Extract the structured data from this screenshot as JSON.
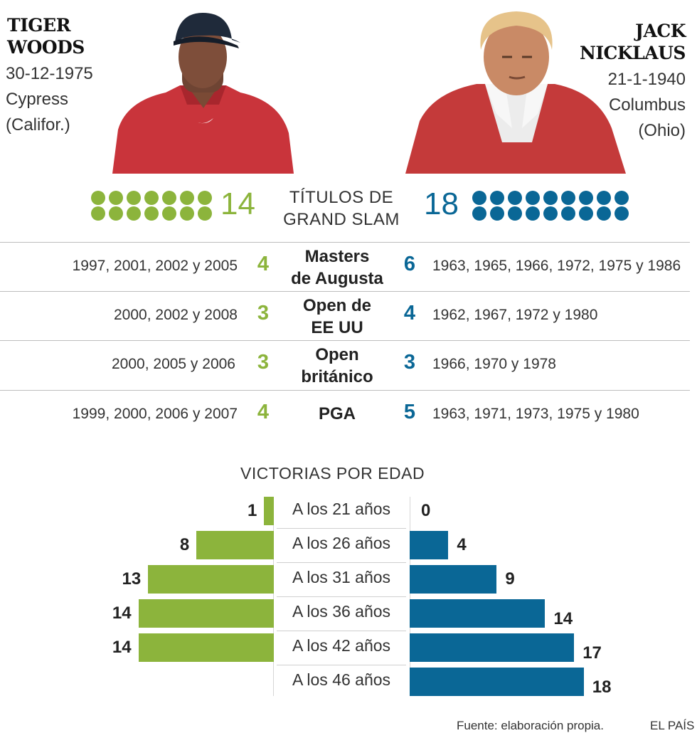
{
  "players": {
    "left": {
      "name_line1": "TIGER",
      "name_line2": "WOODS",
      "birth_date": "30-12-1975",
      "birth_place_line1": "Cypress",
      "birth_place_line2": "(Califor.)",
      "grand_slams": "14",
      "color": "#8cb43c"
    },
    "right": {
      "name_line1": "JACK",
      "name_line2": "NICKLAUS",
      "birth_date": "21-1-1940",
      "birth_place_line1": "Columbus",
      "birth_place_line2": "(Ohio)",
      "grand_slams": "18",
      "color": "#0a6796"
    }
  },
  "grand_slam_title_line1": "TÍTULOS DE",
  "grand_slam_title_line2": "GRAND SLAM",
  "dot_counts": {
    "left": 14,
    "right": 18
  },
  "tournaments": [
    {
      "name_line1": "Masters",
      "name_line2": "de Augusta",
      "left_years": "1997, 2001, 2002 y 2005",
      "left_count": "4",
      "right_count": "6",
      "right_years": "1963, 1965, 1966, 1972, 1975 y 1986"
    },
    {
      "name_line1": "Open de",
      "name_line2": "EE UU",
      "left_years": "2000, 2002 y 2008",
      "left_count": "3",
      "right_count": "4",
      "right_years": "1962, 1967, 1972 y 1980"
    },
    {
      "name_line1": "Open",
      "name_line2": "británico",
      "left_years": "2000, 2005 y 2006",
      "left_count": "3",
      "right_count": "3",
      "right_years": "1966, 1970 y 1978"
    },
    {
      "name_line1": "PGA",
      "name_line2": "",
      "left_years": "1999, 2000, 2006 y 2007",
      "left_count": "4",
      "right_count": "5",
      "right_years": "1963, 1971, 1973, 1975 y 1980"
    }
  ],
  "chart_data": {
    "type": "bar",
    "title": "VICTORIAS POR EDAD",
    "categories": [
      "A los 21 años",
      "A los 26 años",
      "A los 31 años",
      "A los 36 años",
      "A los 42 años",
      "A los 46 años"
    ],
    "series": [
      {
        "name": "TIGER WOODS",
        "values": [
          1,
          8,
          13,
          14,
          14,
          null
        ],
        "labels": [
          "1",
          "8",
          "13",
          "14",
          "14",
          ""
        ],
        "color": "#8cb43c"
      },
      {
        "name": "JACK NICKLAUS",
        "values": [
          0,
          4,
          9,
          14,
          17,
          18
        ],
        "labels": [
          "0",
          "4",
          "9",
          "14",
          "17",
          "18"
        ],
        "color": "#0a6796"
      }
    ],
    "xlim": [
      0,
      18
    ],
    "grid": false,
    "legend": "none"
  },
  "footer": {
    "source": "Fuente: elaboración propia.",
    "brand": "EL PAÍS"
  },
  "icons": {
    "left_photo": "tiger-woods-photo",
    "right_photo": "jack-nicklaus-photo"
  }
}
